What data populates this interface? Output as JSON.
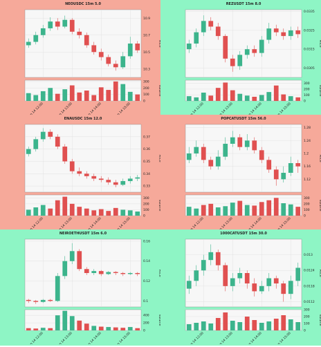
{
  "chart_data": [
    {
      "type": "candlestick",
      "title": "NEOUSDC 15m 5.0",
      "ylabel": "Price",
      "y2label": "Volume",
      "background": "#f6a99a",
      "up_color": "#3cb48c",
      "down_color": "#e05050",
      "grid": true,
      "categories": [
        null,
        null,
        "Sep 14 12:00",
        null,
        null,
        null,
        "Sep 14 13:00",
        null,
        null,
        null,
        "Sep 14 14:00",
        null,
        null,
        null,
        "Sep 14 15:00",
        null
      ],
      "open": [
        10.58,
        10.62,
        10.7,
        10.78,
        10.86,
        10.8,
        10.88,
        10.74,
        10.7,
        10.58,
        10.5,
        10.44,
        10.36,
        10.32,
        10.45,
        10.6
      ],
      "high": [
        10.66,
        10.74,
        10.82,
        10.91,
        10.9,
        10.93,
        10.9,
        10.78,
        10.73,
        10.62,
        10.54,
        10.47,
        10.4,
        10.5,
        10.68,
        10.63
      ],
      "low": [
        10.55,
        10.59,
        10.67,
        10.75,
        10.76,
        10.78,
        10.71,
        10.66,
        10.55,
        10.47,
        10.4,
        10.33,
        10.28,
        10.3,
        10.42,
        10.49
      ],
      "close": [
        10.62,
        10.7,
        10.78,
        10.86,
        10.8,
        10.88,
        10.74,
        10.7,
        10.58,
        10.5,
        10.44,
        10.36,
        10.32,
        10.45,
        10.6,
        10.52
      ],
      "volume": [
        120,
        90,
        150,
        200,
        110,
        180,
        240,
        130,
        160,
        90,
        210,
        170,
        300,
        260,
        140,
        100
      ],
      "ylim": [
        10.2,
        11.0
      ],
      "yticks": [
        10.3,
        10.5,
        10.7,
        10.9
      ],
      "y2lim": [
        0,
        320
      ],
      "y2ticks": [
        0,
        100,
        200,
        300
      ]
    },
    {
      "type": "candlestick",
      "title": "REZUSDT 15m 8.0",
      "ylabel": "Price",
      "y2label": "Volume",
      "background": "#8ef5c5",
      "up_color": "#3cb48c",
      "down_color": "#e05050",
      "grid": true,
      "categories": [
        null,
        null,
        "Sep 14 12:00",
        null,
        null,
        null,
        "Sep 14 13:00",
        null,
        null,
        null,
        "Sep 14 14:00",
        null,
        null,
        null,
        "Sep 14 15:00",
        null
      ],
      "open": [
        0.0315,
        0.0318,
        0.0324,
        0.033,
        0.0327,
        0.0322,
        0.031,
        0.0306,
        0.0312,
        0.0315,
        0.0313,
        0.032,
        0.0326,
        0.0324,
        0.0322,
        0.0325
      ],
      "high": [
        0.032,
        0.0326,
        0.0333,
        0.0332,
        0.0329,
        0.0323,
        0.0312,
        0.0314,
        0.0317,
        0.0317,
        0.0322,
        0.0329,
        0.0328,
        0.0326,
        0.0327,
        0.0327
      ],
      "low": [
        0.0313,
        0.0316,
        0.0322,
        0.0325,
        0.032,
        0.0308,
        0.0303,
        0.0304,
        0.031,
        0.0311,
        0.0311,
        0.0318,
        0.0322,
        0.032,
        0.032,
        0.0321
      ],
      "close": [
        0.0318,
        0.0324,
        0.033,
        0.0327,
        0.0322,
        0.031,
        0.0306,
        0.0312,
        0.0315,
        0.0313,
        0.032,
        0.0326,
        0.0324,
        0.0322,
        0.0325,
        0.0323
      ],
      "volume": [
        80,
        60,
        140,
        90,
        220,
        310,
        180,
        120,
        90,
        70,
        100,
        150,
        260,
        110,
        80,
        60
      ],
      "ylim": [
        0.03,
        0.0336
      ],
      "yticks": [
        0.0305,
        0.0315,
        0.0325,
        0.0335
      ],
      "y2lim": [
        0,
        350
      ],
      "y2ticks": [
        0,
        100,
        200,
        300
      ]
    },
    {
      "type": "candlestick",
      "title": "ENAUSDC 15m 12.0",
      "ylabel": "Price",
      "y2label": "Volume",
      "background": "#f6a99a",
      "up_color": "#3cb48c",
      "down_color": "#e05050",
      "grid": true,
      "categories": [
        null,
        null,
        "Sep 14 12:00",
        null,
        null,
        null,
        "Sep 14 13:00",
        null,
        null,
        null,
        "Sep 14 14:00",
        null,
        null,
        null,
        "Sep 14 15:00",
        null
      ],
      "open": [
        0.356,
        0.36,
        0.368,
        0.374,
        0.37,
        0.362,
        0.35,
        0.342,
        0.34,
        0.338,
        0.336,
        0.335,
        0.333,
        0.331,
        0.334,
        0.336
      ],
      "high": [
        0.362,
        0.37,
        0.377,
        0.376,
        0.372,
        0.364,
        0.352,
        0.345,
        0.342,
        0.34,
        0.338,
        0.337,
        0.335,
        0.336,
        0.338,
        0.339
      ],
      "low": [
        0.354,
        0.358,
        0.366,
        0.368,
        0.36,
        0.348,
        0.34,
        0.338,
        0.336,
        0.334,
        0.333,
        0.331,
        0.329,
        0.33,
        0.332,
        0.334
      ],
      "close": [
        0.36,
        0.368,
        0.374,
        0.37,
        0.362,
        0.35,
        0.342,
        0.34,
        0.338,
        0.336,
        0.335,
        0.333,
        0.331,
        0.334,
        0.336,
        0.337
      ],
      "volume": [
        100,
        140,
        180,
        120,
        260,
        320,
        200,
        150,
        120,
        90,
        110,
        80,
        130,
        100,
        90,
        70
      ],
      "ylim": [
        0.325,
        0.38
      ],
      "yticks": [
        0.33,
        0.34,
        0.35,
        0.36,
        0.37
      ],
      "y2lim": [
        0,
        350
      ],
      "y2ticks": [
        0,
        100,
        200,
        300
      ]
    },
    {
      "type": "candlestick",
      "title": "POPCATUSDT 15m 56.0",
      "ylabel": "Price",
      "y2label": "Volume",
      "background": "#f6a99a",
      "up_color": "#3cb48c",
      "down_color": "#e05050",
      "grid": true,
      "categories": [
        null,
        null,
        "Sep 14 12:00",
        null,
        null,
        null,
        "Sep 14 13:00",
        null,
        null,
        null,
        "Sep 14 14:00",
        null,
        null,
        null,
        "Sep 14 15:00",
        null
      ],
      "open": [
        1.18,
        1.2,
        1.22,
        1.18,
        1.16,
        1.19,
        1.23,
        1.25,
        1.22,
        1.24,
        1.21,
        1.18,
        1.15,
        1.12,
        1.14,
        1.17
      ],
      "high": [
        1.22,
        1.24,
        1.23,
        1.19,
        1.21,
        1.25,
        1.27,
        1.26,
        1.26,
        1.25,
        1.22,
        1.19,
        1.16,
        1.16,
        1.19,
        1.18
      ],
      "low": [
        1.17,
        1.19,
        1.17,
        1.15,
        1.15,
        1.18,
        1.22,
        1.21,
        1.21,
        1.2,
        1.17,
        1.14,
        1.1,
        1.11,
        1.13,
        1.14
      ],
      "close": [
        1.2,
        1.22,
        1.18,
        1.16,
        1.19,
        1.23,
        1.25,
        1.22,
        1.24,
        1.21,
        1.18,
        1.15,
        1.12,
        1.14,
        1.17,
        1.16
      ],
      "volume": [
        150,
        120,
        180,
        200,
        140,
        160,
        220,
        250,
        180,
        170,
        230,
        260,
        300,
        210,
        190,
        150
      ],
      "ylim": [
        1.08,
        1.29
      ],
      "yticks": [
        1.12,
        1.16,
        1.2,
        1.24,
        1.28
      ],
      "y2lim": [
        0,
        350
      ],
      "y2ticks": [
        0,
        100,
        200,
        300
      ]
    },
    {
      "type": "candlestick",
      "title": "NEIROETHUSDT 15m 6.0",
      "ylabel": "Price",
      "y2label": "Volume",
      "background": "#8ef5c5",
      "up_color": "#3cb48c",
      "down_color": "#e05050",
      "grid": true,
      "categories": [
        null,
        null,
        "Sep 14 12:00",
        null,
        null,
        null,
        "Sep 14 13:00",
        null,
        null,
        null,
        "Sep 14 14:00",
        null,
        null,
        null,
        "Sep 14 15:00",
        null
      ],
      "open": [
        0.101,
        0.1,
        0.099,
        0.101,
        0.1,
        0.125,
        0.14,
        0.15,
        0.132,
        0.128,
        0.13,
        0.127,
        0.129,
        0.128,
        0.127,
        0.128
      ],
      "high": [
        0.102,
        0.101,
        0.102,
        0.102,
        0.128,
        0.145,
        0.158,
        0.152,
        0.134,
        0.132,
        0.131,
        0.13,
        0.13,
        0.129,
        0.129,
        0.129
      ],
      "low": [
        0.098,
        0.097,
        0.098,
        0.099,
        0.099,
        0.122,
        0.137,
        0.13,
        0.126,
        0.126,
        0.125,
        0.126,
        0.126,
        0.125,
        0.126,
        0.125
      ],
      "close": [
        0.1,
        0.099,
        0.101,
        0.1,
        0.125,
        0.14,
        0.15,
        0.132,
        0.128,
        0.13,
        0.127,
        0.129,
        0.128,
        0.127,
        0.128,
        0.127
      ],
      "volume": [
        60,
        50,
        70,
        60,
        400,
        520,
        380,
        260,
        180,
        120,
        100,
        90,
        80,
        70,
        90,
        60
      ],
      "ylim": [
        0.094,
        0.162
      ],
      "yticks": [
        0.1,
        0.12,
        0.14,
        0.16
      ],
      "y2lim": [
        0,
        550
      ],
      "y2ticks": [
        0,
        200,
        400
      ]
    },
    {
      "type": "candlestick",
      "title": "1000CATUSDT 15m 30.0",
      "ylabel": "Price",
      "y2label": "Volume",
      "background": "#8ef5c5",
      "up_color": "#3cb48c",
      "down_color": "#e05050",
      "grid": true,
      "categories": [
        null,
        null,
        "Sep 14 12:00",
        null,
        null,
        null,
        "Sep 14 13:00",
        null,
        null,
        null,
        "Sep 14 14:00",
        null,
        null,
        null,
        "Sep 14 15:00",
        null
      ],
      "open": [
        0.0117,
        0.012,
        0.0124,
        0.0128,
        0.0131,
        0.0126,
        0.0118,
        0.0121,
        0.0123,
        0.0119,
        0.0116,
        0.0118,
        0.0121,
        0.0119,
        0.0115,
        0.012
      ],
      "high": [
        0.0122,
        0.0126,
        0.013,
        0.0134,
        0.0132,
        0.0127,
        0.0123,
        0.0125,
        0.0124,
        0.0121,
        0.012,
        0.0123,
        0.0122,
        0.012,
        0.0122,
        0.0127
      ],
      "low": [
        0.0115,
        0.0118,
        0.0122,
        0.0126,
        0.0124,
        0.0116,
        0.0116,
        0.0119,
        0.0117,
        0.0114,
        0.0115,
        0.0116,
        0.0117,
        0.0112,
        0.0113,
        0.0118
      ],
      "close": [
        0.012,
        0.0124,
        0.0128,
        0.0131,
        0.0126,
        0.0118,
        0.0121,
        0.0123,
        0.0119,
        0.0116,
        0.0118,
        0.0121,
        0.0119,
        0.0115,
        0.012,
        0.0125
      ],
      "volume": [
        90,
        110,
        130,
        100,
        180,
        260,
        140,
        120,
        200,
        150,
        110,
        130,
        170,
        220,
        160,
        120
      ],
      "ylim": [
        0.011,
        0.0136
      ],
      "yticks": [
        0.0112,
        0.0118,
        0.0124,
        0.013
      ],
      "y2lim": [
        0,
        300
      ],
      "y2ticks": [
        0,
        100,
        200,
        300
      ]
    }
  ]
}
